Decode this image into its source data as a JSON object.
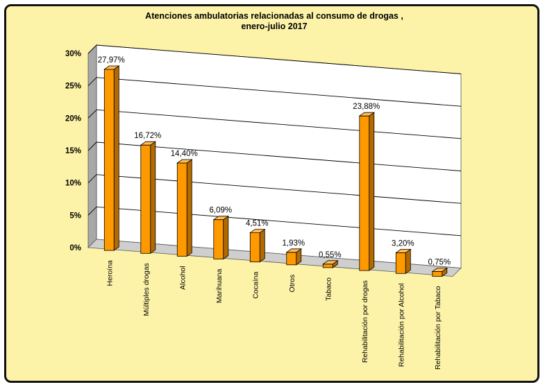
{
  "chart_data": {
    "type": "bar",
    "title": "Atenciones ambulatorias relacionadas al consumo de drogas ,",
    "subtitle": "enero-julio 2017",
    "categories": [
      "Heroína",
      "Múltiples drogas",
      "Alcohol",
      "Marihuana",
      "Cocaína",
      "Otros",
      "Tabaco",
      "Rehabilitación por drogas",
      "Rehabilitación por Alcohol",
      "Rehabilitación por Tabaco"
    ],
    "values": [
      27.97,
      16.72,
      14.4,
      6.09,
      4.51,
      1.93,
      0.55,
      23.88,
      3.2,
      0.75
    ],
    "data_labels": [
      "27,97%",
      "16,72%",
      "14,40%",
      "6,09%",
      "4,51%",
      "1,93%",
      "0,55%",
      "23,88%",
      "3,20%",
      "0,75%"
    ],
    "yticks": [
      0,
      5,
      10,
      15,
      20,
      25,
      30
    ],
    "ytick_labels": [
      "0%",
      "5%",
      "10%",
      "15%",
      "20%",
      "25%",
      "30%"
    ],
    "ylim": [
      0,
      30
    ],
    "xlabel": "",
    "ylabel": "",
    "grid": true,
    "legend": "none",
    "bar_color": "#ff9900",
    "bar_top_color": "#ffbb55",
    "bar_side_color": "#b36b00",
    "wall_color": "#ffffff",
    "floor_color": "#cfcfcf",
    "side_wall_color": "#a8a8a8"
  }
}
